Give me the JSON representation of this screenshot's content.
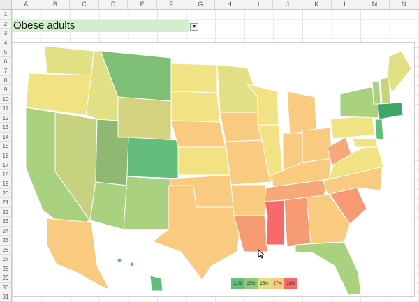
{
  "spreadsheet": {
    "columns": [
      "A",
      "B",
      "C",
      "D",
      "E",
      "F",
      "G",
      "H",
      "I",
      "J",
      "K",
      "L",
      "M",
      "N"
    ],
    "rows": [
      "1",
      "2",
      "3",
      "4",
      "5",
      "6",
      "7",
      "8",
      "9",
      "10",
      "11",
      "12",
      "13",
      "14",
      "15",
      "16",
      "17",
      "18",
      "19",
      "20",
      "21",
      "22",
      "23",
      "24",
      "25",
      "26",
      "27",
      "28",
      "29",
      "30",
      "31"
    ]
  },
  "title_cell": {
    "value": "Obese adults"
  },
  "legend": {
    "items": [
      {
        "label": "21%",
        "color": "#63be7b"
      },
      {
        "label": "23%",
        "color": "#8fc97b"
      },
      {
        "label": "25%",
        "color": "#e2e085"
      },
      {
        "label": "27%",
        "color": "#f8cc80"
      },
      {
        "label": "31%",
        "color": "#f8696b"
      }
    ]
  },
  "colors": {
    "green": "#63be7b",
    "light_green": "#a9d17f",
    "yellow": "#f1e384",
    "light_orange": "#f8cb80",
    "orange": "#f59a72",
    "red": "#f8696b"
  }
}
